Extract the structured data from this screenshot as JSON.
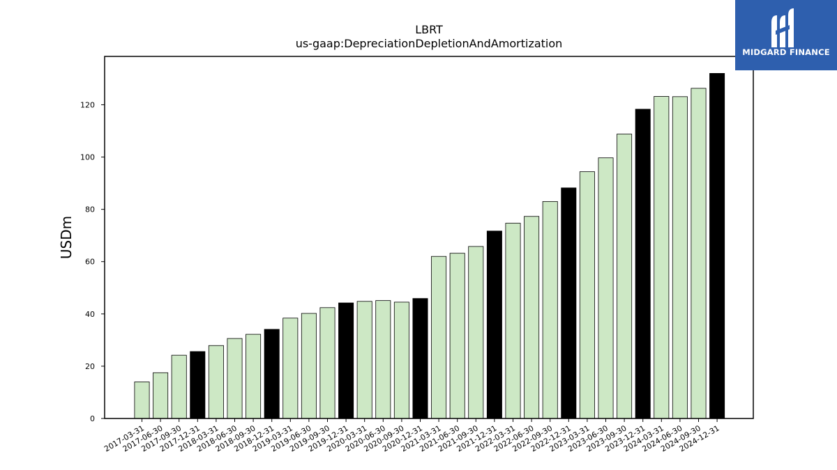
{
  "logo": {
    "text": "MIDGARD FINANCE"
  },
  "chart_data": {
    "type": "bar",
    "title": "LBRT",
    "subtitle": "us-gaap:DepreciationDepletionAndAmortization",
    "xlabel": "",
    "ylabel": "USDm",
    "ylim": [
      0,
      138.5
    ],
    "yticks": [
      0,
      20,
      40,
      60,
      80,
      100,
      120
    ],
    "grid": false,
    "colors": {
      "quarter": "#cde8c5",
      "year_end": "#000000",
      "edge": "#000000"
    },
    "categories": [
      "2017-03-31",
      "2017-06-30",
      "2017-09-30",
      "2017-12-31",
      "2018-03-31",
      "2018-06-30",
      "2018-09-30",
      "2018-12-31",
      "2019-03-31",
      "2019-06-30",
      "2019-09-30",
      "2019-12-31",
      "2020-03-31",
      "2020-06-30",
      "2020-09-30",
      "2020-12-31",
      "2021-03-31",
      "2021-06-30",
      "2021-09-30",
      "2021-12-31",
      "2022-03-31",
      "2022-06-30",
      "2022-09-30",
      "2022-12-31",
      "2023-03-31",
      "2023-06-30",
      "2023-09-30",
      "2023-12-31",
      "2024-03-31",
      "2024-06-30",
      "2024-09-30",
      "2024-12-31"
    ],
    "values": [
      14.0,
      17.5,
      24.2,
      25.6,
      27.9,
      30.6,
      32.2,
      34.1,
      38.4,
      40.2,
      42.4,
      44.2,
      44.8,
      45.1,
      44.5,
      45.9,
      62.0,
      63.2,
      65.8,
      71.7,
      74.7,
      77.3,
      83.0,
      88.2,
      94.4,
      99.7,
      108.8,
      118.3,
      123.2,
      123.1,
      126.3,
      132.0
    ]
  }
}
